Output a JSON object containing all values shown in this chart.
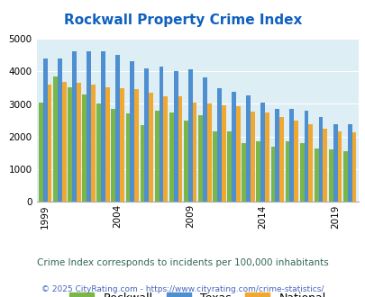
{
  "title": "Rockwall Property Crime Index",
  "years": [
    1999,
    2000,
    2001,
    2002,
    2003,
    2004,
    2005,
    2006,
    2007,
    2008,
    2009,
    2010,
    2011,
    2012,
    2013,
    2014,
    2015,
    2016,
    2017,
    2018,
    2019,
    2020
  ],
  "rockwall": [
    3050,
    3850,
    3500,
    3300,
    3000,
    2850,
    2700,
    2350,
    2800,
    2750,
    2500,
    2650,
    2150,
    2150,
    1800,
    1850,
    1700,
    1850,
    1800,
    1650,
    1600,
    1550
  ],
  "texas": [
    4400,
    4400,
    4600,
    4600,
    4600,
    4500,
    4300,
    4100,
    4150,
    4000,
    4050,
    3800,
    3470,
    3380,
    3250,
    3050,
    2850,
    2850,
    2780,
    2600,
    2380,
    2380
  ],
  "national": [
    3600,
    3680,
    3650,
    3600,
    3520,
    3480,
    3450,
    3340,
    3230,
    3230,
    3040,
    3000,
    2950,
    2920,
    2760,
    2750,
    2610,
    2480,
    2370,
    2230,
    2150,
    2120
  ],
  "colors": {
    "rockwall": "#7ab648",
    "texas": "#4d8fd1",
    "national": "#f0a830"
  },
  "xlabel_ticks": [
    1999,
    2004,
    2009,
    2014,
    2019
  ],
  "ylim": [
    0,
    5000
  ],
  "yticks": [
    0,
    1000,
    2000,
    3000,
    4000,
    5000
  ],
  "bg_color": "#ddeef5",
  "subtitle": "Crime Index corresponds to incidents per 100,000 inhabitants",
  "footer": "© 2025 CityRating.com - https://www.cityrating.com/crime-statistics/",
  "title_color": "#1060c0",
  "subtitle_color": "#336655",
  "footer_color": "#4466bb"
}
